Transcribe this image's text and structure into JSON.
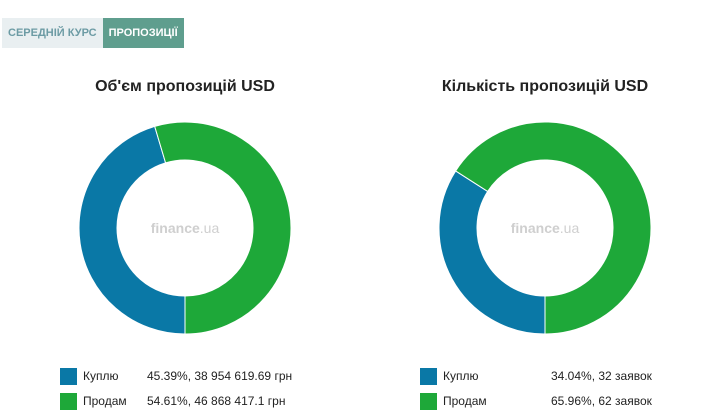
{
  "tabs": [
    {
      "label": "СЕРЕДНІЙ КУРС",
      "active": false
    },
    {
      "label": "ПРОПОЗИЦІЇ",
      "active": true
    }
  ],
  "colors": {
    "buy": "#0a78a6",
    "sell": "#1ea839"
  },
  "watermark": {
    "brand": "finance",
    "tld": ".ua"
  },
  "chart_data": [
    {
      "type": "pie",
      "title": "Об'єм пропозицій USD",
      "categories": [
        "Куплю",
        "Продам"
      ],
      "values": [
        45.39,
        54.61
      ],
      "legend_values": [
        "45.39%, 38 954 619.69 грн",
        "54.61%, 46 868 417.1 грн"
      ]
    },
    {
      "type": "pie",
      "title": "Кількість пропозицій USD",
      "categories": [
        "Куплю",
        "Продам"
      ],
      "values": [
        34.04,
        65.96
      ],
      "legend_values": [
        "34.04%, 32 заявок",
        "65.96%, 62 заявок"
      ]
    }
  ]
}
